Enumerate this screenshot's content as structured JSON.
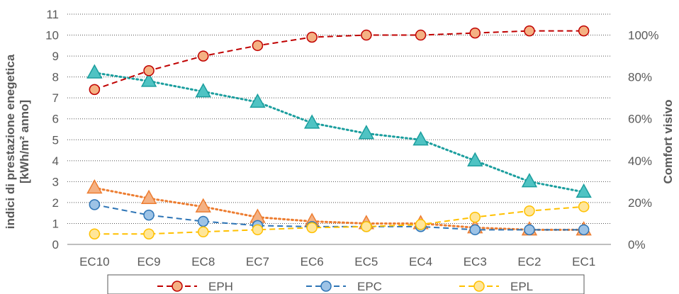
{
  "chart_data": {
    "type": "line",
    "categories": [
      "EC10",
      "EC9",
      "EC8",
      "EC7",
      "EC6",
      "EC5",
      "EC4",
      "EC3",
      "EC2",
      "EC1"
    ],
    "left_axis": {
      "label_line1": "indici di prestazione enegetica",
      "label_line2": "[kWh/m² anno]",
      "ylim": [
        0,
        11
      ],
      "ticks": [
        "0",
        "1",
        "2",
        "3",
        "4",
        "5",
        "6",
        "7",
        "8",
        "9",
        "10",
        "11"
      ]
    },
    "right_axis": {
      "label": "Comfort visivo",
      "ylim": [
        0,
        1.1
      ],
      "ticks": [
        "0%",
        "20%",
        "40%",
        "60%",
        "80%",
        "100%"
      ],
      "tick_values": [
        0,
        0.2,
        0.4,
        0.6,
        0.8,
        1.0
      ]
    },
    "grid": "horizontal-dotted",
    "legend_position": "bottom",
    "series": [
      {
        "name": "EPH",
        "axis": "left",
        "marker": "circle",
        "dash": "dashed",
        "color": "#C00000",
        "fill": "#F4B183",
        "values": [
          7.4,
          8.3,
          9.0,
          9.5,
          9.9,
          10.0,
          10.0,
          10.1,
          10.2,
          10.2
        ]
      },
      {
        "name": "EPC",
        "axis": "left",
        "marker": "circle",
        "dash": "dashed",
        "color": "#2E75B6",
        "fill": "#9DC3E6",
        "values": [
          1.9,
          1.4,
          1.1,
          0.9,
          0.85,
          0.85,
          0.85,
          0.7,
          0.7,
          0.7
        ]
      },
      {
        "name": "EPL",
        "axis": "left",
        "marker": "circle",
        "dash": "dashed",
        "color": "#FFC000",
        "fill": "#FFE699",
        "values": [
          0.5,
          0.5,
          0.6,
          0.7,
          0.8,
          0.85,
          0.95,
          1.3,
          1.6,
          1.8
        ]
      },
      {
        "name": "",
        "axis": "right",
        "marker": "triangle",
        "dash": "dotted",
        "color": "#ED7D31",
        "fill": "#F4B183",
        "values": [
          0.27,
          0.22,
          0.18,
          0.13,
          0.11,
          0.1,
          0.1,
          0.08,
          0.07,
          0.07
        ]
      },
      {
        "name": "",
        "axis": "right",
        "marker": "triangle",
        "dash": "dotted",
        "color": "#1B9E9E",
        "fill": "#4FC3C3",
        "values": [
          0.82,
          0.78,
          0.73,
          0.68,
          0.58,
          0.53,
          0.5,
          0.4,
          0.3,
          0.25
        ]
      }
    ]
  }
}
